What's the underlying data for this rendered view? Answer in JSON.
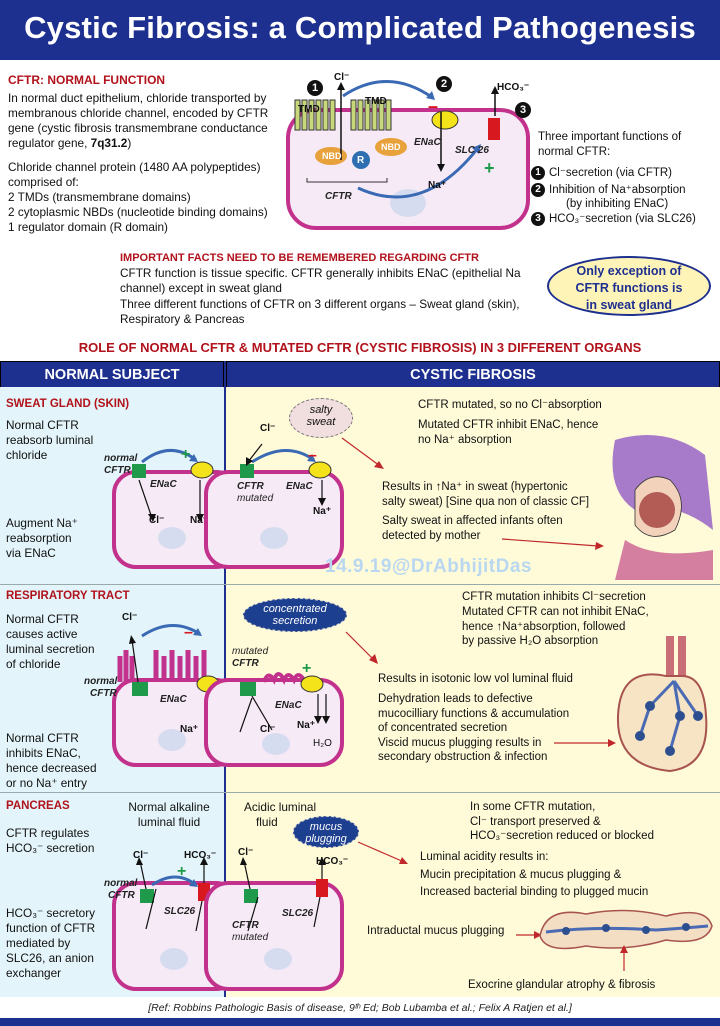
{
  "title": "Cystic Fibrosis: a Complicated  Pathogenesis",
  "normal_function": {
    "heading": "CFTR: NORMAL FUNCTION",
    "para1": "In normal duct epithelium, chloride transported by membranous chloride channel, encoded by CFTR gene (cystic fibrosis transmembrane conductance regulator gene, ",
    "gene_loc": "7q31.2",
    "para1_end": ")",
    "para2": "Chloride channel protein (1480 AA polypeptides) comprised of:",
    "items": [
      "2 TMDs (transmembrane domains)",
      "2 cytoplasmic NBDs (nucleotide binding domains)",
      "1 regulator domain (R domain)"
    ]
  },
  "top_diagram": {
    "tmd_left": "TMD",
    "tmd_right": "TMD",
    "nbd1": "NBD",
    "nbd2": "NBD",
    "r": "R",
    "cftr": "CFTR",
    "enac": "ENaC",
    "slc26": "SLC 26",
    "cl": "Cl⁻",
    "na": "Na⁺",
    "hco3": "HCO₃⁻",
    "minus": "–",
    "plus": "+",
    "nums": [
      "1",
      "2",
      "3"
    ]
  },
  "three_functions": {
    "heading": "Three important functions of normal CFTR:",
    "items": [
      {
        "n": "1",
        "text": "Cl⁻secretion (via CFTR)"
      },
      {
        "n": "2",
        "text": "Inhibition of Na⁺absorption"
      },
      {
        "n": "",
        "text": "(by inhibiting ENaC)"
      },
      {
        "n": "3",
        "text": "HCO₃⁻secretion (via SLC26)"
      }
    ]
  },
  "facts": {
    "heading": "IMPORTANT FACTS NEED TO BE REMEMBERED REGARDING CFTR",
    "p1": "CFTR function is tissue specific. CFTR generally inhibits ENaC (epithelial Na channel) except in sweat gland",
    "p2": "Three different functions of CFTR on 3 different organs – Sweat gland (skin), Respiratory & Pancreas"
  },
  "exception_oval": [
    "Only exception of",
    "CFTR functions is",
    "in sweat gland"
  ],
  "role_heading": "ROLE OF NORMAL CFTR & MUTATED CFTR (CYSTIC FIBROSIS) IN 3 DIFFERENT ORGANS",
  "col_normal": "NORMAL SUBJECT",
  "col_cf": "CYSTIC FIBROSIS",
  "sweat": {
    "heading": "SWEAT GLAND (SKIN)",
    "normal1": [
      "Normal CFTR",
      "reabsorb luminal",
      "chloride"
    ],
    "normal2": [
      "Augment Na⁺",
      "reabsorption",
      "via ENaC"
    ],
    "cloud": [
      "salty",
      "sweat"
    ],
    "cf1": "CFTR mutated, so no Cl⁻absorption",
    "cf2": [
      "Mutated CFTR inhibit ENaC, hence",
      "no Na⁺ absorption"
    ],
    "cf3": [
      "Results in ↑Na⁺ in sweat (hypertonic",
      "salty sweat) [Sine qua non of classic CF]"
    ],
    "cf4": [
      "Salty sweat in affected infants often",
      "detected by mother"
    ],
    "lbl_normal": "normal",
    "lbl_cftr": "CFTR",
    "lbl_mutated": "mutated",
    "enac": "ENaC",
    "cl": "Cl⁻",
    "na": "Na⁺",
    "watermark": "14.9.19@DrAbhijitDas"
  },
  "resp": {
    "heading": "RESPIRATORY  TRACT",
    "normal1": [
      "Normal CFTR",
      "causes active",
      "luminal secretion",
      "of chloride"
    ],
    "normal2": [
      "Normal CFTR",
      "inhibits ENaC,",
      "hence decreased",
      "or no Na⁺ entry"
    ],
    "cloud": [
      "concentrated",
      "secretion"
    ],
    "cf1": "CFTR mutation inhibits Cl⁻secretion",
    "cf2": [
      "Mutated CFTR can not inhibit ENaC,",
      "hence ↑Na⁺absorption, followed",
      "by passive H₂O absorption"
    ],
    "cf3": "Results in isotonic low vol luminal fluid",
    "cf4": [
      "Dehydration leads to defective",
      "mucocilliary functions & accumulation",
      "of concentrated secretion",
      "Viscid mucus plugging results in",
      "secondary obstruction & infection"
    ],
    "lbl_normal": "normal",
    "lbl_cftr": "CFTR",
    "lbl_mutated": "mutated",
    "enac": "ENaC",
    "cl": "Cl⁻",
    "na": "Na⁺",
    "h2o": "H₂O"
  },
  "pancreas": {
    "heading": "PANCREAS",
    "normal_top": [
      "Normal alkaline",
      "luminal fluid"
    ],
    "normal1": [
      "CFTR regulates",
      "HCO₃⁻ secretion"
    ],
    "normal2": [
      "HCO₃⁻ secretory",
      "function of CFTR",
      "mediated by",
      "SLC26, an anion",
      "exchanger"
    ],
    "acid": [
      "Acidic luminal",
      "fluid"
    ],
    "cloud": [
      "mucus",
      "plugging"
    ],
    "cf1": [
      "In some CFTR mutation,",
      "Cl⁻ transport preserved &",
      "HCO₃⁻secretion reduced or blocked"
    ],
    "cf2": [
      "Luminal acidity results in:",
      "Mucin precipitation & mucus plugging &",
      "Increased bacterial binding to plugged mucin"
    ],
    "cf3": "Intraductal mucus plugging",
    "cf4": "Exocrine glandular atrophy & fibrosis",
    "lbl_normal": "normal",
    "lbl_cftr": "CFTR",
    "lbl_mutated": "mutated",
    "slc26": "SLC26",
    "cl": "Cl⁻",
    "hco3": "HCO₃⁻"
  },
  "reference": "[Ref: Robbins Pathologic Basis of disease, 9ᵗʰ Ed; Bob Lubamba et al.; Felix A Ratjen et al.]",
  "colors": {
    "navy": "#1d2f8f",
    "red": "#b1121b",
    "cell": "#c2318c",
    "green": "#1f9a4a",
    "yellow": "#f4e21a",
    "orange": "#e8a23b"
  }
}
